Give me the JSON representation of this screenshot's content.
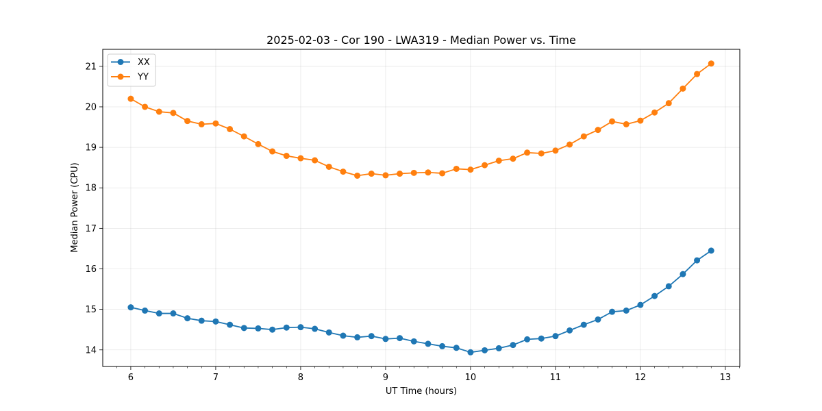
{
  "chart_data": {
    "type": "line",
    "title": "2025-02-03 - Cor 190 - LWA319 - Median Power vs. Time",
    "xlabel": "UT Time (hours)",
    "ylabel": "Median Power (CPU)",
    "xlim": [
      5.67,
      13.17
    ],
    "ylim": [
      13.59,
      21.42
    ],
    "xticks": [
      6,
      7,
      8,
      9,
      10,
      11,
      12,
      13
    ],
    "xtick_labels": [
      "6",
      "7",
      "8",
      "9",
      "10",
      "11",
      "12",
      "13"
    ],
    "yticks": [
      14,
      15,
      16,
      17,
      18,
      19,
      20,
      21
    ],
    "ytick_labels": [
      "14",
      "15",
      "16",
      "17",
      "18",
      "19",
      "20",
      "21"
    ],
    "grid": true,
    "legend_position": "top-left",
    "x": [
      6.0,
      6.1667,
      6.3333,
      6.5,
      6.6667,
      6.8333,
      7.0,
      7.1667,
      7.3333,
      7.5,
      7.6667,
      7.8333,
      8.0,
      8.1667,
      8.3333,
      8.5,
      8.6667,
      8.8333,
      9.0,
      9.1667,
      9.3333,
      9.5,
      9.6667,
      9.8333,
      10.0,
      10.1667,
      10.3333,
      10.5,
      10.6667,
      10.8333,
      11.0,
      11.1667,
      11.3333,
      11.5,
      11.6667,
      11.8333,
      12.0,
      12.1667,
      12.3333,
      12.5,
      12.6667,
      12.8333
    ],
    "series": [
      {
        "name": "XX",
        "color": "#1f77b4",
        "values": [
          15.05,
          14.97,
          14.9,
          14.9,
          14.78,
          14.72,
          14.7,
          14.62,
          14.54,
          14.53,
          14.5,
          14.55,
          14.56,
          14.52,
          14.43,
          14.35,
          14.31,
          14.34,
          14.27,
          14.29,
          14.21,
          14.15,
          14.09,
          14.05,
          13.94,
          13.99,
          14.04,
          14.12,
          14.26,
          14.28,
          14.34,
          14.48,
          14.62,
          14.75,
          14.94,
          14.97,
          15.11,
          15.33,
          15.57,
          15.87,
          16.21,
          16.45
        ]
      },
      {
        "name": "YY",
        "color": "#ff7f0e",
        "values": [
          20.2,
          20.0,
          19.88,
          19.85,
          19.65,
          19.57,
          19.59,
          19.45,
          19.27,
          19.08,
          18.9,
          18.79,
          18.73,
          18.68,
          18.52,
          18.4,
          18.3,
          18.35,
          18.31,
          18.35,
          18.37,
          18.38,
          18.36,
          18.47,
          18.45,
          18.56,
          18.67,
          18.72,
          18.87,
          18.85,
          18.92,
          19.07,
          19.27,
          19.43,
          19.64,
          19.57,
          19.66,
          19.86,
          20.09,
          20.45,
          20.81,
          21.07
        ]
      }
    ]
  }
}
